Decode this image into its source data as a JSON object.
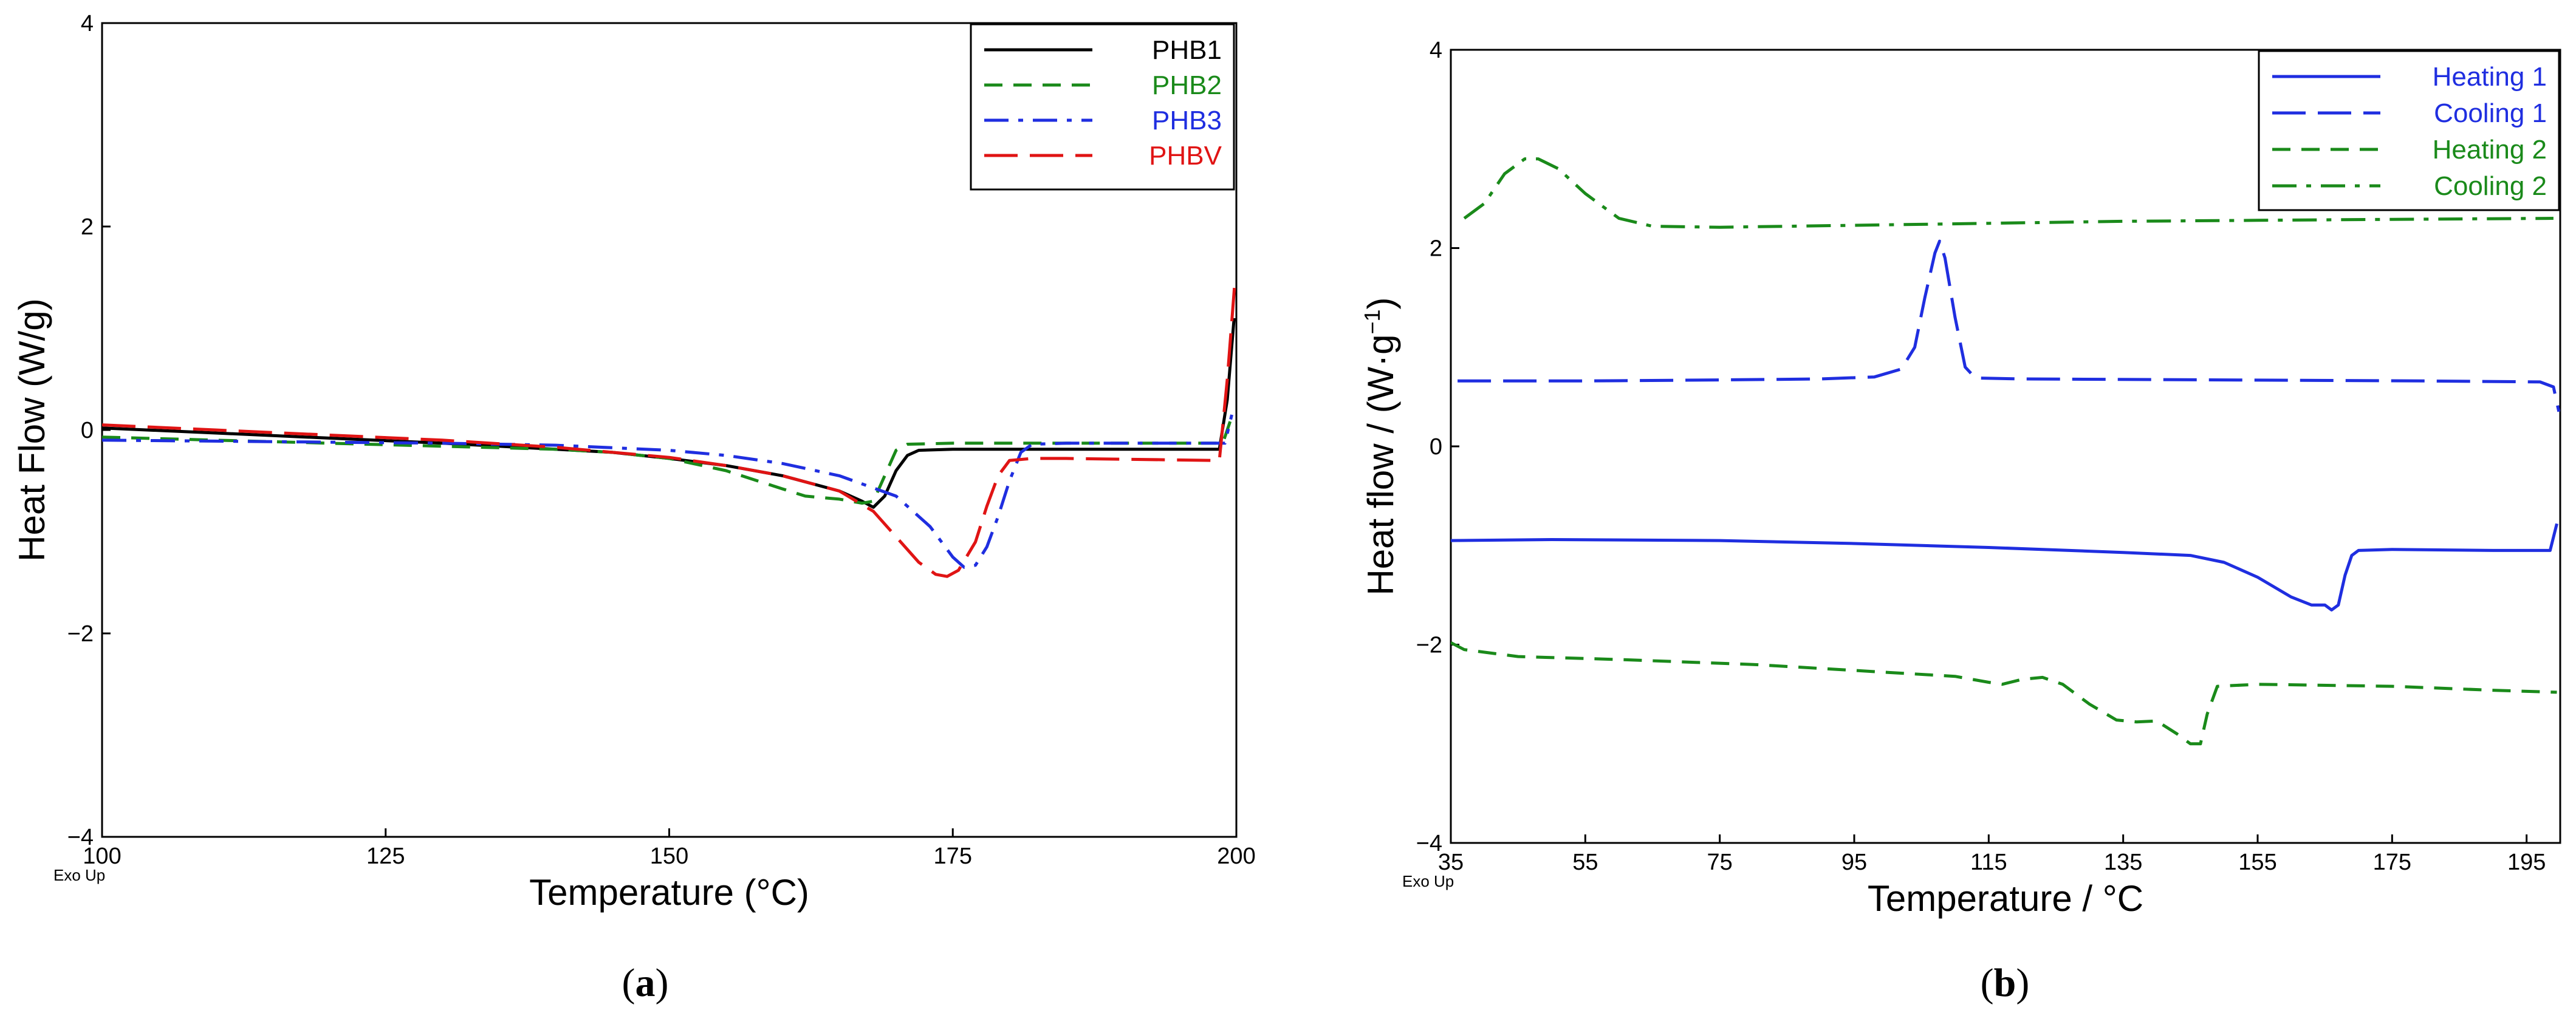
{
  "chart_data": [
    {
      "type": "line",
      "panel_label": "a",
      "xlabel": "Temperature (°C)",
      "ylabel": "Heat Flow (W/g)",
      "corner_note": "Exo Up",
      "xlim": [
        100,
        200
      ],
      "ylim": [
        -4,
        4
      ],
      "xticks": [
        100,
        125,
        150,
        175,
        200
      ],
      "yticks": [
        -4,
        -2,
        0,
        2,
        4
      ],
      "legend_position": "top-right",
      "series": [
        {
          "name": "PHB1",
          "color": "#000000",
          "dash": "solid",
          "points": [
            [
              100,
              0.02
            ],
            [
              110,
              -0.03
            ],
            [
              120,
              -0.08
            ],
            [
              130,
              -0.13
            ],
            [
              140,
              -0.19
            ],
            [
              145,
              -0.22
            ],
            [
              150,
              -0.28
            ],
            [
              155,
              -0.35
            ],
            [
              160,
              -0.45
            ],
            [
              165,
              -0.6
            ],
            [
              167,
              -0.7
            ],
            [
              168,
              -0.76
            ],
            [
              169,
              -0.65
            ],
            [
              170,
              -0.4
            ],
            [
              171,
              -0.25
            ],
            [
              172,
              -0.2
            ],
            [
              175,
              -0.19
            ],
            [
              185,
              -0.19
            ],
            [
              198.5,
              -0.19
            ],
            [
              199.2,
              0.3
            ],
            [
              199.8,
              1.1
            ]
          ]
        },
        {
          "name": "PHB2",
          "color": "#1a8a1a",
          "dash": "dashed",
          "points": [
            [
              100,
              -0.07
            ],
            [
              110,
              -0.1
            ],
            [
              120,
              -0.13
            ],
            [
              130,
              -0.16
            ],
            [
              140,
              -0.19
            ],
            [
              145,
              -0.22
            ],
            [
              150,
              -0.28
            ],
            [
              155,
              -0.4
            ],
            [
              160,
              -0.58
            ],
            [
              162,
              -0.65
            ],
            [
              165,
              -0.68
            ],
            [
              167,
              -0.72
            ],
            [
              168,
              -0.7
            ],
            [
              169,
              -0.45
            ],
            [
              170,
              -0.2
            ],
            [
              171,
              -0.14
            ],
            [
              175,
              -0.13
            ],
            [
              185,
              -0.13
            ],
            [
              198.8,
              -0.13
            ],
            [
              199.5,
              0.1
            ]
          ]
        },
        {
          "name": "PHB3",
          "color": "#1f2ee0",
          "dash": "dashdot",
          "points": [
            [
              100,
              -0.1
            ],
            [
              110,
              -0.11
            ],
            [
              120,
              -0.12
            ],
            [
              130,
              -0.13
            ],
            [
              140,
              -0.15
            ],
            [
              150,
              -0.2
            ],
            [
              155,
              -0.25
            ],
            [
              160,
              -0.33
            ],
            [
              165,
              -0.45
            ],
            [
              170,
              -0.65
            ],
            [
              173,
              -0.95
            ],
            [
              175,
              -1.25
            ],
            [
              176,
              -1.35
            ],
            [
              177,
              -1.33
            ],
            [
              178,
              -1.15
            ],
            [
              179,
              -0.85
            ],
            [
              180,
              -0.5
            ],
            [
              181,
              -0.22
            ],
            [
              182,
              -0.14
            ],
            [
              185,
              -0.13
            ],
            [
              199,
              -0.13
            ],
            [
              199.6,
              0.15
            ]
          ]
        },
        {
          "name": "PHBV",
          "color": "#e01414",
          "dash": "longdash",
          "points": [
            [
              100,
              0.05
            ],
            [
              110,
              0.0
            ],
            [
              120,
              -0.05
            ],
            [
              130,
              -0.1
            ],
            [
              140,
              -0.17
            ],
            [
              150,
              -0.27
            ],
            [
              155,
              -0.35
            ],
            [
              160,
              -0.45
            ],
            [
              165,
              -0.6
            ],
            [
              168,
              -0.8
            ],
            [
              170,
              -1.05
            ],
            [
              172,
              -1.3
            ],
            [
              173.5,
              -1.42
            ],
            [
              174.5,
              -1.44
            ],
            [
              175.5,
              -1.38
            ],
            [
              177,
              -1.1
            ],
            [
              178,
              -0.75
            ],
            [
              179,
              -0.45
            ],
            [
              180,
              -0.3
            ],
            [
              182,
              -0.28
            ],
            [
              185,
              -0.28
            ],
            [
              198.5,
              -0.3
            ],
            [
              199.2,
              0.5
            ],
            [
              199.9,
              1.5
            ]
          ]
        }
      ]
    },
    {
      "type": "line",
      "panel_label": "b",
      "xlabel": "Temperature / °C",
      "ylabel_main": "Heat flow / (W·g",
      "ylabel_sup": "−1",
      "ylabel_end": ")",
      "corner_note": "Exo Up",
      "xlim": [
        35,
        200
      ],
      "ylim": [
        -4,
        4
      ],
      "xticks": [
        35,
        55,
        75,
        95,
        115,
        135,
        155,
        175,
        195
      ],
      "yticks": [
        -4,
        -2,
        0,
        2,
        4
      ],
      "legend_position": "top-right",
      "series": [
        {
          "name": "Heating 1",
          "color": "#1f2ee0",
          "dash": "solid",
          "points": [
            [
              35,
              -0.95
            ],
            [
              50,
              -0.94
            ],
            [
              75,
              -0.95
            ],
            [
              95,
              -0.98
            ],
            [
              115,
              -1.02
            ],
            [
              135,
              -1.07
            ],
            [
              145,
              -1.1
            ],
            [
              150,
              -1.17
            ],
            [
              155,
              -1.32
            ],
            [
              160,
              -1.52
            ],
            [
              163,
              -1.6
            ],
            [
              165,
              -1.6
            ],
            [
              166,
              -1.65
            ],
            [
              167,
              -1.6
            ],
            [
              168,
              -1.3
            ],
            [
              169,
              -1.1
            ],
            [
              170,
              -1.05
            ],
            [
              175,
              -1.04
            ],
            [
              190,
              -1.05
            ],
            [
              198.5,
              -1.05
            ],
            [
              199.5,
              -0.78
            ]
          ]
        },
        {
          "name": "Cooling 1",
          "color": "#1f2ee0",
          "dash": "longdash",
          "points": [
            [
              36,
              0.66
            ],
            [
              55,
              0.66
            ],
            [
              75,
              0.67
            ],
            [
              90,
              0.68
            ],
            [
              98,
              0.7
            ],
            [
              102,
              0.78
            ],
            [
              104,
              1.0
            ],
            [
              105.5,
              1.5
            ],
            [
              107,
              1.95
            ],
            [
              107.7,
              2.07
            ],
            [
              108.5,
              1.9
            ],
            [
              110,
              1.3
            ],
            [
              111.5,
              0.8
            ],
            [
              113,
              0.69
            ],
            [
              120,
              0.68
            ],
            [
              150,
              0.67
            ],
            [
              180,
              0.66
            ],
            [
              197,
              0.65
            ],
            [
              199,
              0.6
            ],
            [
              199.8,
              0.35
            ]
          ]
        },
        {
          "name": "Heating 2",
          "color": "#1a8a1a",
          "dash": "dashed",
          "points": [
            [
              35,
              -1.98
            ],
            [
              37,
              -2.05
            ],
            [
              45,
              -2.12
            ],
            [
              60,
              -2.15
            ],
            [
              80,
              -2.2
            ],
            [
              100,
              -2.28
            ],
            [
              110,
              -2.32
            ],
            [
              115,
              -2.38
            ],
            [
              117,
              -2.4
            ],
            [
              120,
              -2.35
            ],
            [
              123,
              -2.33
            ],
            [
              126,
              -2.4
            ],
            [
              130,
              -2.6
            ],
            [
              134,
              -2.76
            ],
            [
              137,
              -2.78
            ],
            [
              140,
              -2.77
            ],
            [
              143,
              -2.9
            ],
            [
              145,
              -3.0
            ],
            [
              146.5,
              -3.0
            ],
            [
              147.5,
              -2.7
            ],
            [
              149,
              -2.42
            ],
            [
              155,
              -2.4
            ],
            [
              175,
              -2.42
            ],
            [
              190,
              -2.46
            ],
            [
              199.5,
              -2.48
            ]
          ]
        },
        {
          "name": "Cooling 2",
          "color": "#1a8a1a",
          "dash": "dashdot",
          "points": [
            [
              37,
              2.3
            ],
            [
              40,
              2.45
            ],
            [
              43,
              2.75
            ],
            [
              46,
              2.9
            ],
            [
              48,
              2.9
            ],
            [
              51,
              2.8
            ],
            [
              55,
              2.55
            ],
            [
              60,
              2.3
            ],
            [
              65,
              2.22
            ],
            [
              75,
              2.21
            ],
            [
              95,
              2.23
            ],
            [
              115,
              2.25
            ],
            [
              135,
              2.27
            ],
            [
              155,
              2.28
            ],
            [
              175,
              2.29
            ],
            [
              199,
              2.3
            ]
          ]
        }
      ]
    }
  ]
}
